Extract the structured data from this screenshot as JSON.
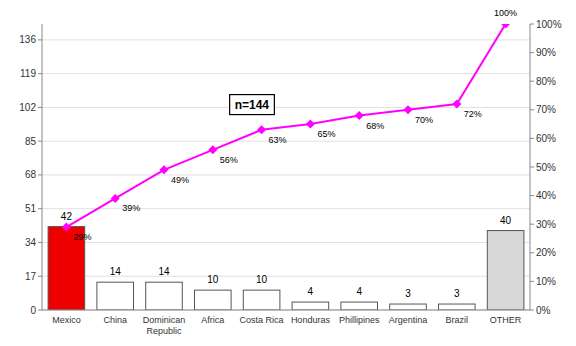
{
  "chart_data": {
    "type": "bar",
    "categories": [
      "Mexico",
      "China",
      "Dominican\nRepublic",
      "Africa",
      "Costa Rica",
      "Honduras",
      "Phillipines",
      "Argentina",
      "Brazil",
      "OTHER"
    ],
    "series": [
      {
        "type": "bar",
        "values": [
          42,
          14,
          14,
          10,
          10,
          4,
          4,
          3,
          3,
          40
        ],
        "colors": [
          "#ee0000",
          "#ffffff",
          "#ffffff",
          "#ffffff",
          "#ffffff",
          "#ffffff",
          "#ffffff",
          "#ffffff",
          "#ffffff",
          "#d8d8d8"
        ],
        "data_labels": true
      },
      {
        "type": "line",
        "axis": "y2",
        "values": [
          29,
          39,
          49,
          56,
          63,
          65,
          68,
          70,
          72,
          100
        ],
        "value_labels": [
          "29%",
          "39%",
          "49%",
          "56%",
          "63%",
          "65%",
          "68%",
          "70%",
          "72%",
          "100%"
        ],
        "color": "#ff00ff",
        "marker": "diamond",
        "line_style": "solid",
        "data_labels": true
      }
    ],
    "ylim": [
      0,
      144
    ],
    "yticks": [
      0,
      17,
      34,
      51,
      68,
      85,
      102,
      119,
      136
    ],
    "y2lim": [
      0,
      100
    ],
    "y2ticks": [
      {
        "value": 0,
        "label": "0%"
      },
      {
        "value": 10,
        "label": "10%"
      },
      {
        "value": 20,
        "label": "20%"
      },
      {
        "value": 30,
        "label": "30%"
      },
      {
        "value": 40,
        "label": "40%"
      },
      {
        "value": 50,
        "label": "50%"
      },
      {
        "value": 60,
        "label": "60%"
      },
      {
        "value": 70,
        "label": "70%"
      },
      {
        "value": 80,
        "label": "80%"
      },
      {
        "value": 90,
        "label": "90%"
      },
      {
        "value": 100,
        "label": "100%"
      }
    ],
    "grid": true,
    "annotations": [
      "n=144"
    ]
  }
}
